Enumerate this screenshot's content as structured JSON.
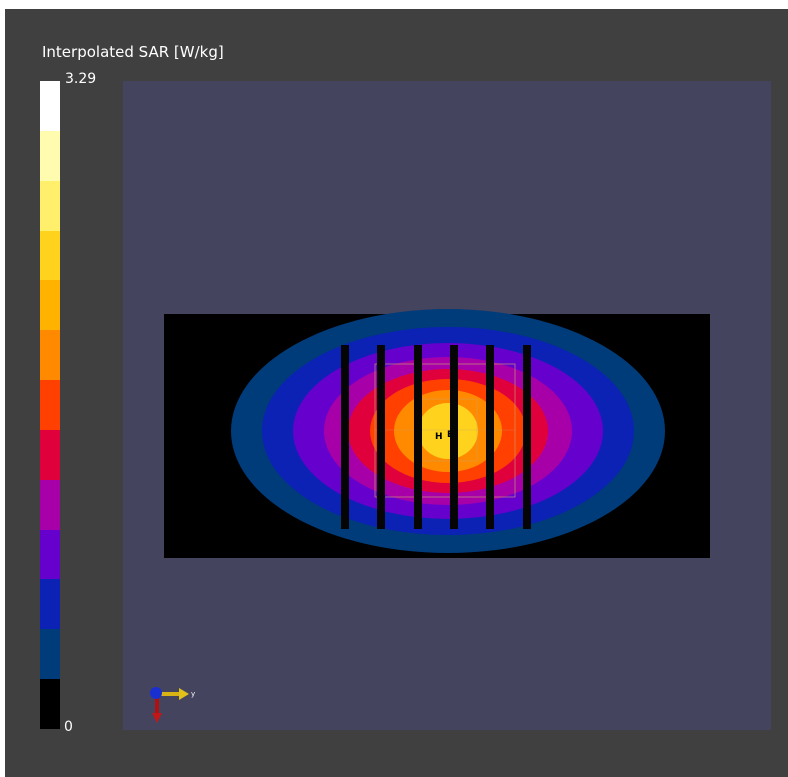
{
  "legend": {
    "title": "Interpolated SAR [W/kg]",
    "max_label": "3.29",
    "min_label": "0",
    "colors_top_to_bottom": [
      "#ffffff",
      "#fffcb0",
      "#ffef6a",
      "#ffd21e",
      "#ffb300",
      "#ff8a00",
      "#ff4000",
      "#e0003c",
      "#a800a8",
      "#6600cc",
      "#0b22b5",
      "#003b7a",
      "#000000"
    ]
  },
  "viewport": {
    "background": "#44445f",
    "heatmap_colors_outer_to_inner": [
      "#003b7a",
      "#0b22b5",
      "#6600cc",
      "#a800a8",
      "#e0003c",
      "#ff4000",
      "#ff8a00",
      "#ffd21e"
    ],
    "probe_labels": {
      "h": "H",
      "e": "E"
    },
    "axis_label": "y"
  }
}
